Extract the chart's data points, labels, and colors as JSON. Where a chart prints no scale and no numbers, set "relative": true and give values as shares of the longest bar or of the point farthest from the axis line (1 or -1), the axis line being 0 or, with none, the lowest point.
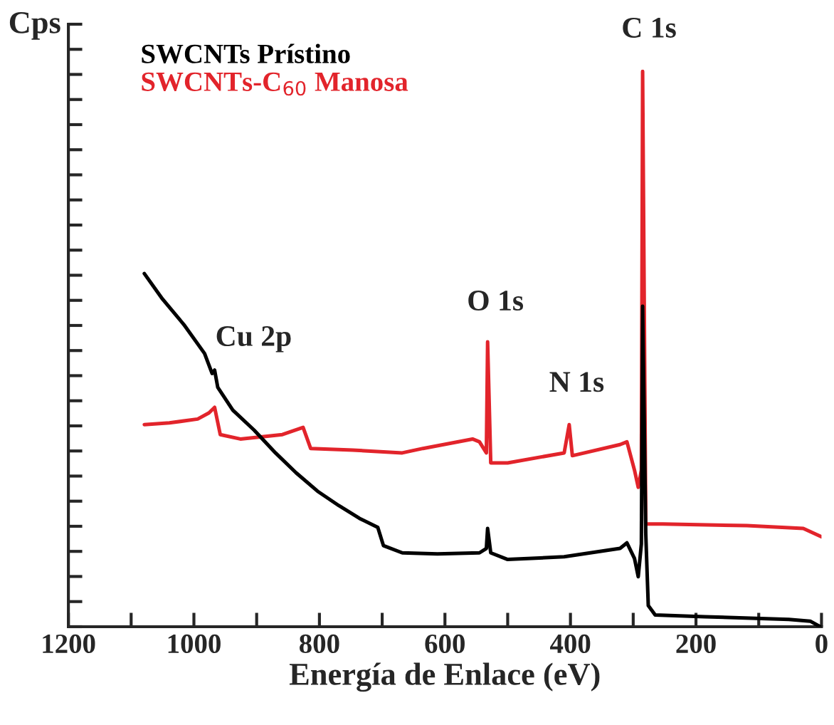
{
  "chart_data": {
    "type": "line",
    "relative": true,
    "xlabel": "Energía de Enlace (eV)",
    "ylabel": "Cps",
    "xlim": [
      1200,
      0
    ],
    "xticks": [
      1200,
      {
        "value": 1100,
        "label": null
      },
      1000,
      {
        "value": 900,
        "label": null
      },
      800,
      {
        "value": 700,
        "label": null
      },
      600,
      {
        "value": 500,
        "label": null
      },
      400,
      {
        "value": 300,
        "label": null
      },
      200,
      {
        "value": 100,
        "label": null
      },
      0
    ],
    "tick_labels": "x",
    "legend": "top left",
    "grid": false,
    "marker": "none",
    "line_style": "solid",
    "annotations": [
      "Cu 2p",
      "O 1s",
      "N 1s",
      "C 1s"
    ],
    "series": [
      {
        "name": "SWCNTs Prístino",
        "color": "#000000",
        "x": [
          1079,
          1050,
          1016,
          983,
          971,
          967,
          962,
          938,
          904,
          870,
          837,
          803,
          769,
          736,
          707,
          698,
          668,
          612,
          545,
          534,
          532,
          527,
          500,
          410,
          321,
          310,
          298,
          292,
          287,
          285,
          280,
          276,
          265,
          186,
          52,
          18,
          2
        ],
        "values": [
          0.636,
          0.59,
          0.544,
          0.492,
          0.456,
          0.462,
          0.431,
          0.39,
          0.354,
          0.313,
          0.277,
          0.244,
          0.218,
          0.195,
          0.179,
          0.146,
          0.133,
          0.131,
          0.133,
          0.141,
          0.177,
          0.133,
          0.121,
          0.126,
          0.141,
          0.151,
          0.123,
          0.09,
          0.149,
          0.577,
          0.167,
          0.038,
          0.021,
          0.018,
          0.013,
          0.01,
          0.0
        ]
      },
      {
        "name": "SWCNTs-C$_{60}$ Manosa",
        "color": "#e2242b",
        "x": [
          1079,
          1039,
          994,
          976,
          967,
          958,
          926,
          859,
          826,
          814,
          747,
          668,
          635,
          556,
          545,
          534,
          532,
          527,
          500,
          410,
          402,
          397,
          321,
          310,
          298,
          292,
          287,
          285,
          280,
          253,
          119,
          29,
          0
        ],
        "values": [
          0.364,
          0.367,
          0.374,
          0.385,
          0.395,
          0.346,
          0.338,
          0.346,
          0.359,
          0.321,
          0.318,
          0.313,
          0.321,
          0.338,
          0.333,
          0.313,
          0.513,
          0.295,
          0.295,
          0.313,
          0.364,
          0.308,
          0.328,
          0.333,
          0.282,
          0.251,
          0.282,
          1.0,
          0.185,
          0.185,
          0.182,
          0.177,
          0.162
        ]
      }
    ]
  }
}
